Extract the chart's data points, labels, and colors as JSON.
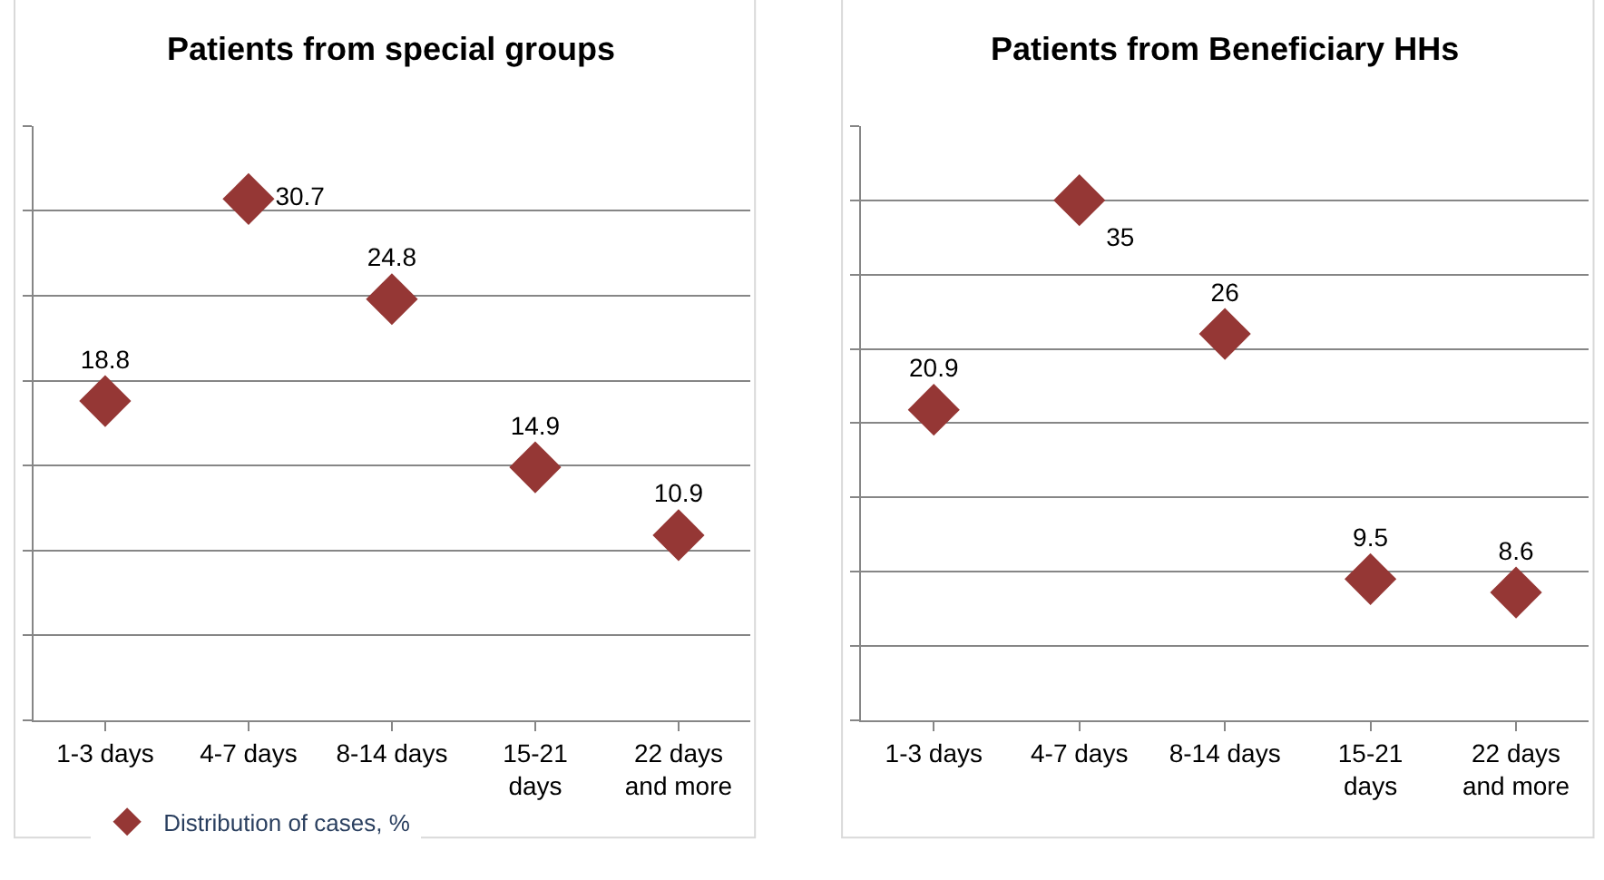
{
  "chart_data": [
    {
      "type": "scatter",
      "title": "Patients from special groups",
      "categories": [
        "1-3 days",
        "4-7 days",
        "8-14 days",
        "15-21 days",
        "22 days and more"
      ],
      "series": [
        {
          "name": "Distribution of cases, %",
          "color": "#953735",
          "values": [
            18.8,
            30.7,
            24.8,
            14.9,
            10.9
          ]
        }
      ],
      "ylim": [
        0,
        35
      ],
      "yticks": [
        {
          "value": 0,
          "label": null
        },
        {
          "value": 5,
          "label": null
        },
        {
          "value": 10,
          "label": null
        },
        {
          "value": 15,
          "label": null
        },
        {
          "value": 20,
          "label": null
        },
        {
          "value": 25,
          "label": null
        },
        {
          "value": 30,
          "label": null
        },
        {
          "value": 35,
          "label": null
        }
      ],
      "tick_labels": "x",
      "grid": "y",
      "marker": "diamond",
      "data_labels": true,
      "legend": "bottom"
    },
    {
      "type": "scatter",
      "title": "Patients from Beneficiary HHs",
      "categories": [
        "1-3 days",
        "4-7 days",
        "8-14 days",
        "15-21 days",
        "22 days and more"
      ],
      "series": [
        {
          "color": "#953735",
          "values": [
            20.9,
            35,
            26,
            9.5,
            8.6
          ]
        }
      ],
      "ylim": [
        0,
        40
      ],
      "yticks": [
        {
          "value": 0,
          "label": null
        },
        {
          "value": 5,
          "label": null
        },
        {
          "value": 10,
          "label": null
        },
        {
          "value": 15,
          "label": null
        },
        {
          "value": 20,
          "label": null
        },
        {
          "value": 25,
          "label": null
        },
        {
          "value": 30,
          "label": null
        },
        {
          "value": 35,
          "label": null
        },
        {
          "value": 40,
          "label": null
        }
      ],
      "tick_labels": "x",
      "grid": "y",
      "marker": "diamond",
      "data_labels": true
    }
  ]
}
